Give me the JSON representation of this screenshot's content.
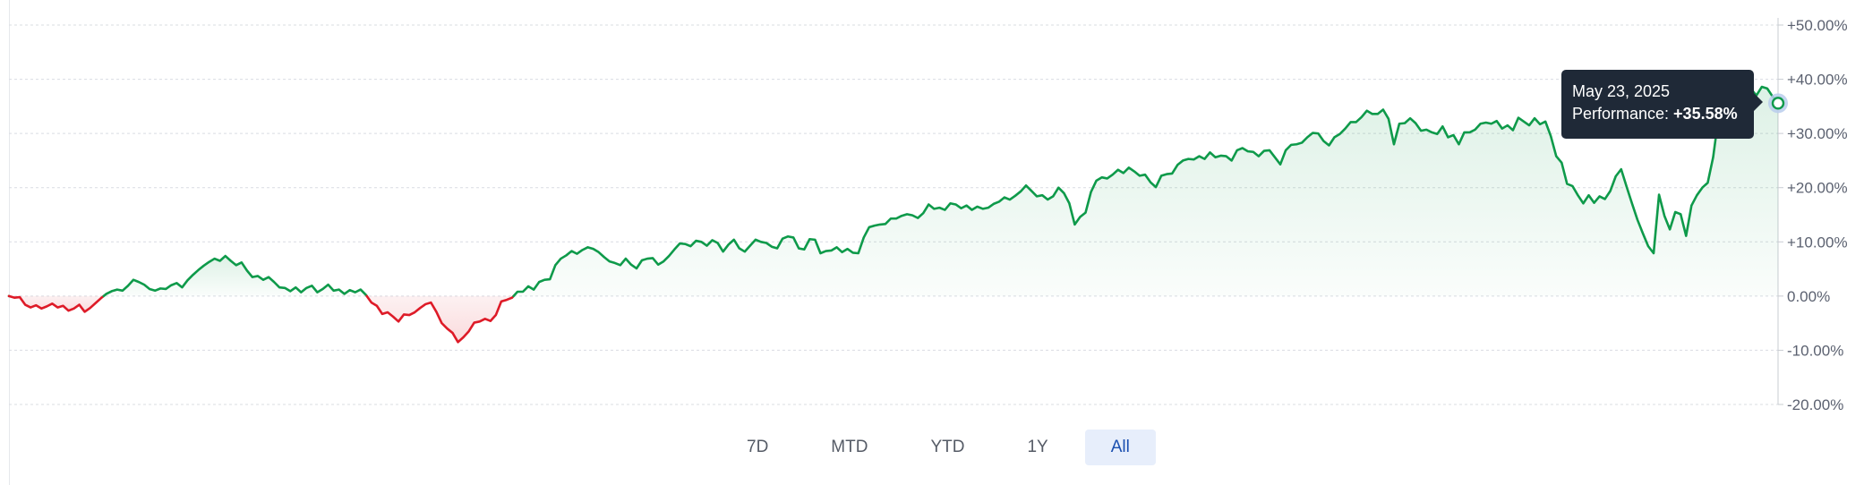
{
  "colors": {
    "positive": "#0e9a4a",
    "negative": "#de1b28",
    "positive_fill": "#e8f5ec",
    "negative_fill": "#fde8ea",
    "tooltip_bg": "#1f2937",
    "active_range_bg": "#e7eefb",
    "active_range_text": "#1a4fb0"
  },
  "tooltip": {
    "date": "May 23, 2025",
    "label": "Performance: ",
    "value": "+35.58%"
  },
  "range_selector": {
    "options": [
      "7D",
      "MTD",
      "YTD",
      "1Y",
      "All"
    ],
    "selected": "All"
  },
  "chart_data": {
    "type": "area",
    "title": "",
    "xlabel": "",
    "ylabel": "",
    "ylim": [
      -20,
      50
    ],
    "yticks": [
      50,
      40,
      30,
      20,
      10,
      0,
      -10,
      -20
    ],
    "ytick_labels": [
      "+50.00%",
      "+40.00%",
      "+30.00%",
      "+20.00%",
      "+10.00%",
      "0.00%",
      "-10.00%",
      "-20.00%"
    ],
    "grid": "horizontal dotted",
    "x_end": "May 23, 2025",
    "series": [
      {
        "values": [
          0,
          -0.3,
          -0.2,
          -1.6,
          -2.1,
          -1.7,
          -2.3,
          -1.9,
          -1.4,
          -2.1,
          -1.8,
          -2.7,
          -2.3,
          -1.6,
          -2.9,
          -2.2,
          -1.3,
          -0.4,
          0.4,
          0.9,
          1.2,
          1.0,
          1.9,
          3.0,
          2.6,
          2.1,
          1.3,
          1.0,
          1.4,
          1.3,
          2.0,
          2.4,
          1.6,
          2.9,
          3.9,
          4.8,
          5.6,
          6.3,
          6.9,
          6.5,
          7.4,
          6.5,
          5.7,
          6.2,
          4.7,
          3.5,
          3.7,
          3.0,
          3.5,
          2.6,
          1.6,
          1.5,
          0.9,
          1.6,
          0.7,
          1.5,
          1.9,
          0.7,
          1.3,
          2.1,
          1.0,
          1.2,
          0.4,
          1.1,
          0.7,
          1.2,
          0.2,
          -1.2,
          -1.8,
          -3.3,
          -3.0,
          -3.8,
          -4.7,
          -3.4,
          -3.5,
          -3.0,
          -2.2,
          -1.5,
          -1.2,
          -2.9,
          -5.0,
          -6.0,
          -6.8,
          -8.5,
          -7.6,
          -6.5,
          -4.9,
          -4.7,
          -4.2,
          -4.6,
          -3.5,
          -1.0,
          -0.7,
          -0.3,
          0.8,
          0.8,
          1.8,
          1.2,
          2.6,
          3.0,
          3.1,
          5.7,
          6.9,
          7.5,
          8.3,
          7.8,
          8.5,
          9.0,
          8.7,
          8.1,
          7.2,
          6.4,
          6.1,
          5.7,
          6.9,
          5.8,
          5.1,
          6.6,
          6.9,
          7.0,
          5.8,
          6.4,
          7.4,
          8.6,
          9.7,
          9.6,
          9.2,
          10.2,
          10.0,
          9.3,
          10.3,
          9.8,
          8.2,
          9.5,
          10.4,
          8.8,
          8.2,
          9.3,
          10.4,
          10.0,
          9.8,
          9.1,
          8.8,
          10.6,
          11.0,
          10.8,
          8.8,
          8.6,
          10.5,
          10.4,
          7.9,
          8.3,
          8.4,
          9.0,
          8.1,
          8.7,
          8.0,
          7.9,
          10.8,
          12.7,
          13.0,
          13.2,
          13.3,
          14.3,
          14.3,
          14.8,
          15.1,
          14.9,
          14.4,
          15.3,
          16.9,
          16.1,
          16.3,
          15.9,
          17.1,
          16.9,
          16.2,
          16.7,
          15.9,
          16.5,
          16.1,
          16.3,
          17.0,
          17.4,
          18.2,
          17.8,
          18.5,
          19.3,
          20.4,
          19.4,
          18.4,
          18.6,
          17.8,
          18.4,
          20.0,
          19.0,
          17.1,
          13.2,
          14.6,
          15.4,
          19.2,
          21.3,
          21.9,
          21.7,
          22.4,
          23.3,
          22.7,
          23.7,
          23.0,
          22.2,
          22.4,
          21.0,
          20.1,
          22.2,
          22.5,
          22.6,
          24.2,
          25.0,
          25.3,
          25.2,
          25.8,
          25.3,
          26.5,
          25.6,
          25.9,
          25.8,
          25.0,
          26.9,
          27.3,
          26.7,
          26.6,
          25.8,
          26.8,
          26.9,
          25.6,
          24.3,
          26.9,
          27.9,
          28.0,
          28.3,
          29.3,
          30.1,
          30.0,
          28.6,
          27.8,
          29.3,
          29.9,
          30.9,
          32.1,
          32.1,
          33.0,
          34.2,
          33.6,
          33.6,
          34.4,
          32.7,
          28.0,
          31.8,
          31.9,
          32.8,
          31.9,
          30.5,
          30.7,
          30.2,
          29.9,
          31.3,
          29.3,
          29.7,
          28.0,
          30.2,
          30.2,
          30.7,
          31.8,
          32.0,
          31.8,
          32.3,
          30.9,
          31.5,
          30.6,
          32.9,
          32.2,
          31.5,
          32.8,
          31.7,
          32.2,
          29.5,
          25.8,
          24.6,
          20.7,
          20.3,
          18.6,
          17.1,
          18.6,
          17.2,
          18.4,
          17.9,
          19.4,
          22.1,
          23.4,
          20.2,
          17.1,
          14.1,
          11.6,
          9.2,
          7.9,
          18.7,
          14.8,
          12.3,
          15.5,
          15.1,
          11.1,
          16.7,
          18.6,
          20.0,
          20.9,
          25.6,
          33.1,
          29.5,
          29.3,
          30.1,
          31.6,
          35.3,
          38.2,
          37.0,
          38.6,
          38.3,
          36.8,
          35.58
        ]
      }
    ]
  }
}
